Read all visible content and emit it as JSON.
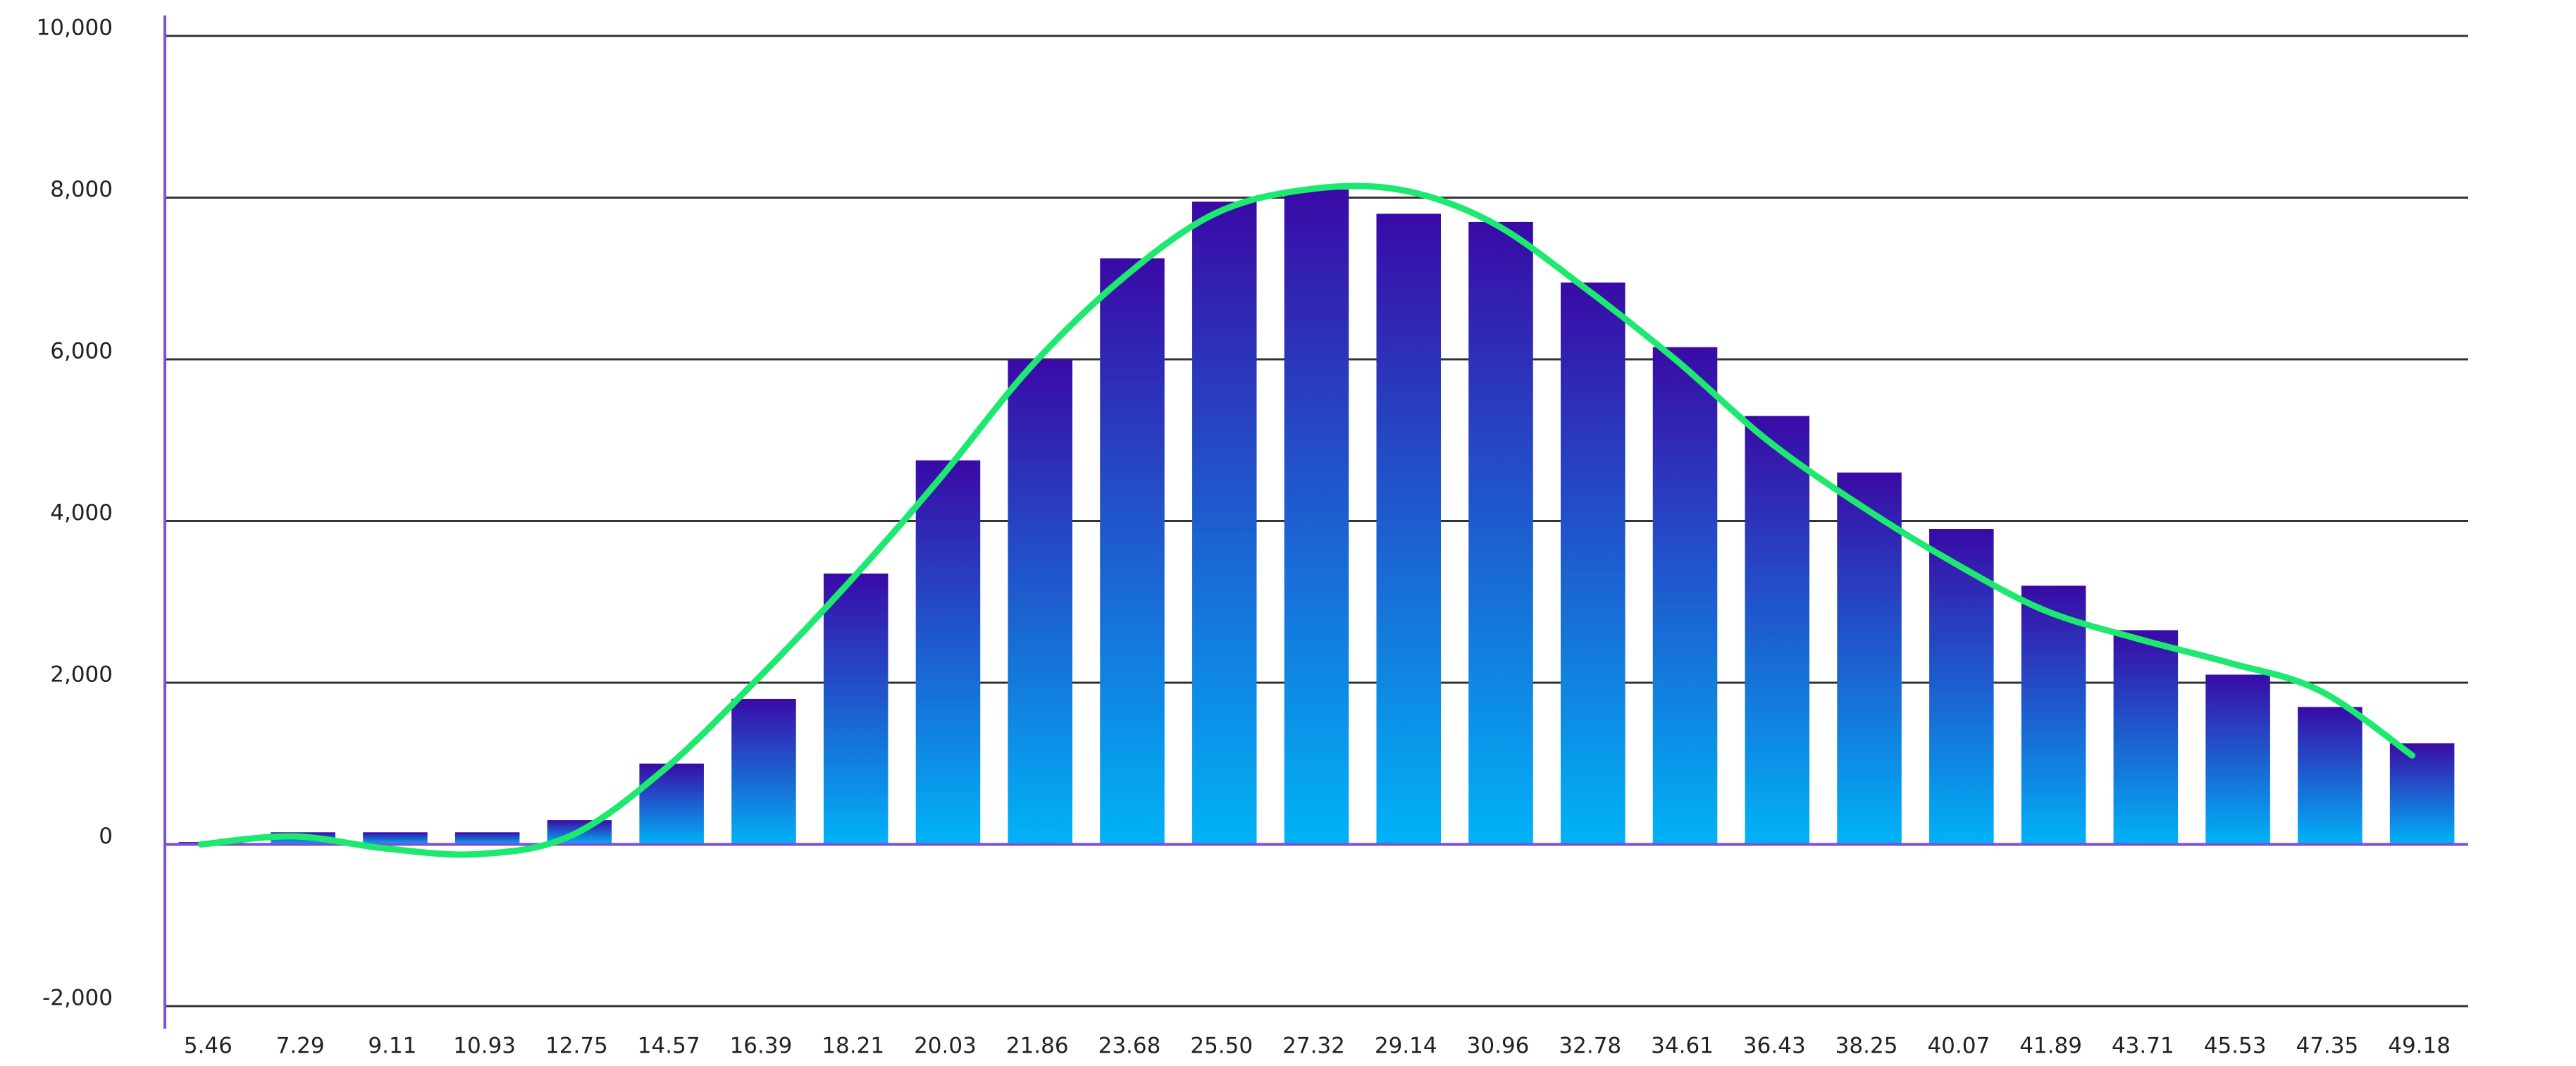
{
  "chart_data": {
    "type": "combo",
    "categories": [
      "5.46",
      "7.29",
      "9.11",
      "10.93",
      "12.75",
      "14.57",
      "16.39",
      "18.21",
      "20.03",
      "21.86",
      "23.68",
      "25.50",
      "27.32",
      "29.14",
      "30.96",
      "32.78",
      "34.61",
      "36.43",
      "38.25",
      "40.07",
      "41.89",
      "43.71",
      "45.53",
      "47.35",
      "49.18"
    ],
    "series": [
      {
        "type": "bar",
        "color": [
          "#3a0aa6",
          "#00b3f8"
        ],
        "values": [
          30,
          150,
          150,
          150,
          300,
          1000,
          1800,
          3350,
          4750,
          6000,
          7250,
          7950,
          8100,
          7800,
          7700,
          6950,
          6150,
          5300,
          4600,
          3900,
          3200,
          2650,
          2100,
          1700,
          1250
        ]
      },
      {
        "type": "line",
        "color": "#1de870",
        "values": [
          0,
          100,
          -50,
          -120,
          100,
          900,
          2000,
          3200,
          4500,
          5900,
          7000,
          7800,
          8100,
          8100,
          7700,
          6900,
          6000,
          5000,
          4200,
          3500,
          2900,
          2550,
          2250,
          1900,
          1100
        ]
      }
    ],
    "ylim": [
      -2000,
      10000
    ],
    "yticks": [
      {
        "value": -2000,
        "label": "-2,000"
      },
      0,
      {
        "value": 2000,
        "label": "2,000"
      },
      {
        "value": 4000,
        "label": "4,000"
      },
      {
        "value": 6000,
        "label": "6,000"
      },
      {
        "value": 8000,
        "label": "8,000"
      },
      {
        "value": 10000,
        "label": "10,000"
      }
    ],
    "grid": true
  }
}
